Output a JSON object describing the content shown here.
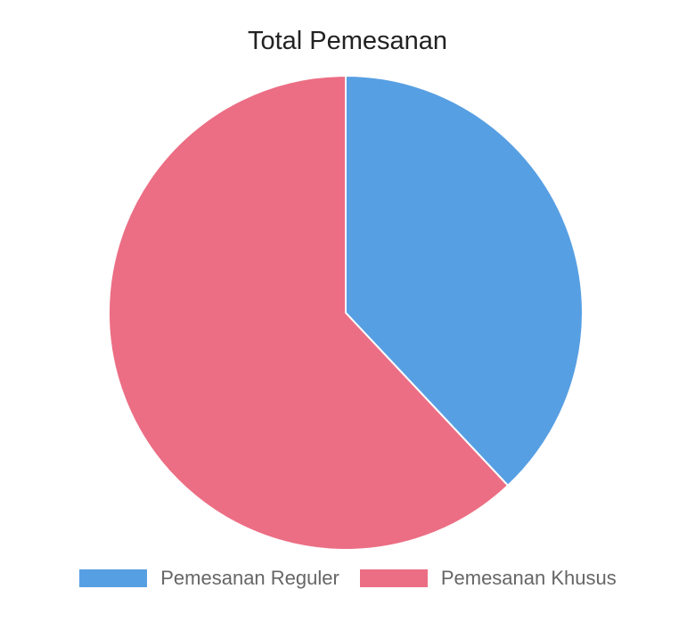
{
  "chart_data": {
    "type": "pie",
    "title": "Total Pemesanan",
    "categories": [
      "Pemesanan Reguler",
      "Pemesanan Khusus"
    ],
    "values": [
      38,
      62
    ],
    "colors": [
      "#579FE3",
      "#EC6E84"
    ],
    "legend_position": "bottom",
    "start_angle": "top, clockwise"
  }
}
